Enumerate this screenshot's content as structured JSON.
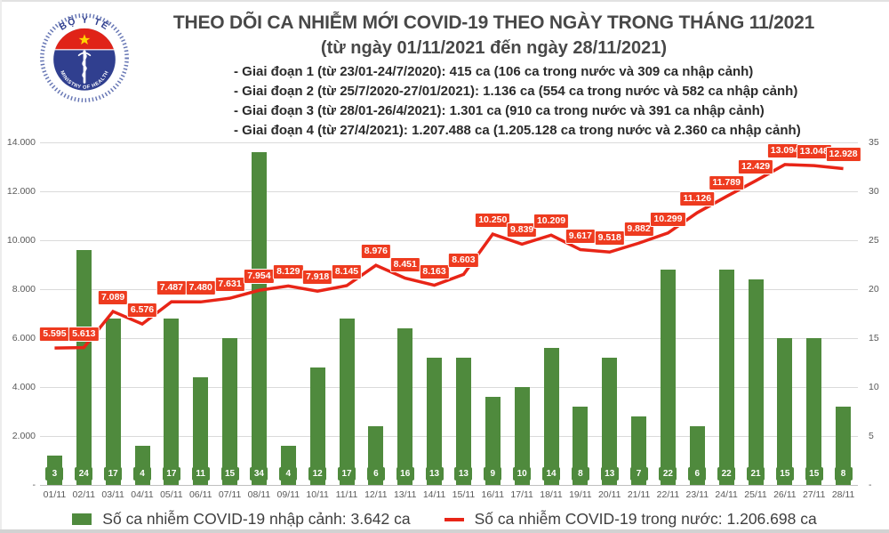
{
  "header": {
    "title": "THEO DÕI CA NHIỄM MỚI COVID-19 THEO NGÀY TRONG THÁNG 11/2021",
    "subtitle": "(từ ngày 01/11/2021 đến ngày 28/11/2021)",
    "notes": [
      "- Giai đoạn 1 (từ 23/01-24/7/2020): 415 ca (106 ca trong nước và 309 ca nhập cảnh)",
      "- Giai đoạn 2 (từ 25/7/2020-27/01/2021): 1.136 ca (554 ca trong nước và 582 ca nhập cảnh)",
      "- Giai đoạn 3 (từ 28/01-26/4/2021): 1.301 ca (910 ca trong nước và 391 ca nhập cảnh)",
      "- Giai đoạn 4 (từ 27/4/2021): 1.207.488 ca (1.205.128 ca trong nước và 2.360 ca nhập cảnh)"
    ],
    "logo": {
      "top_text": "BỘ Y TẾ",
      "bottom_text": "MINISTRY OF HEALTH"
    }
  },
  "chart_data": {
    "type": "combo-bar-line",
    "categories": [
      "01/11",
      "02/11",
      "03/11",
      "04/11",
      "05/11",
      "06/11",
      "07/11",
      "08/11",
      "09/11",
      "10/11",
      "11/11",
      "12/11",
      "13/11",
      "14/11",
      "15/11",
      "16/11",
      "17/11",
      "18/11",
      "19/11",
      "20/11",
      "21/11",
      "22/11",
      "23/11",
      "24/11",
      "25/11",
      "26/11",
      "27/11",
      "28/11"
    ],
    "series": [
      {
        "name": "Số ca nhiễm COVID-19 nhập cảnh",
        "type": "bar",
        "axis": "right",
        "color": "#4F8A3D",
        "values": [
          3,
          24,
          17,
          4,
          17,
          11,
          15,
          34,
          4,
          12,
          17,
          6,
          16,
          13,
          13,
          9,
          10,
          14,
          8,
          13,
          7,
          22,
          6,
          22,
          21,
          15,
          15,
          8
        ]
      },
      {
        "name": "Số ca nhiễm COVID-19 trong nước",
        "type": "line",
        "axis": "left",
        "color": "#E82517",
        "label_bg": "#EE3B1F",
        "values": [
          5595,
          5613,
          7089,
          6576,
          7487,
          7480,
          7631,
          7954,
          8129,
          7918,
          8145,
          8976,
          8451,
          8163,
          8603,
          10250,
          9839,
          10209,
          9617,
          9518,
          9882,
          10299,
          11126,
          11789,
          12429,
          13094,
          13048,
          12928
        ],
        "labels": [
          "5.595",
          "5.613",
          "7.089",
          "6.576",
          "7.487",
          "7.480",
          "7.631",
          "7.954",
          "8.129",
          "7.918",
          "8.145",
          "8.976",
          "8.451",
          "8.163",
          "8.603",
          "10.250",
          "9.839",
          "10.209",
          "9.617",
          "9.518",
          "9.882",
          "10.299",
          "11.126",
          "11.789",
          "12.429",
          "13.094",
          "13.048",
          "12.928"
        ]
      }
    ],
    "left_axis": {
      "min": 0,
      "max": 14000,
      "ticks": [
        "14.000",
        "12.000",
        "10.000",
        "8.000",
        "6.000",
        "4.000",
        "2.000",
        "-"
      ]
    },
    "right_axis": {
      "min": 0,
      "max": 35,
      "ticks": [
        "35",
        "30",
        "25",
        "20",
        "15",
        "10",
        "5",
        "-"
      ]
    },
    "grid": true,
    "legend_position": "bottom"
  },
  "legend": {
    "imported": "Số ca nhiễm COVID-19 nhập cảnh: 3.642 ca",
    "domestic": "Số ca nhiễm COVID-19 trong nước: 1.206.698 ca"
  }
}
